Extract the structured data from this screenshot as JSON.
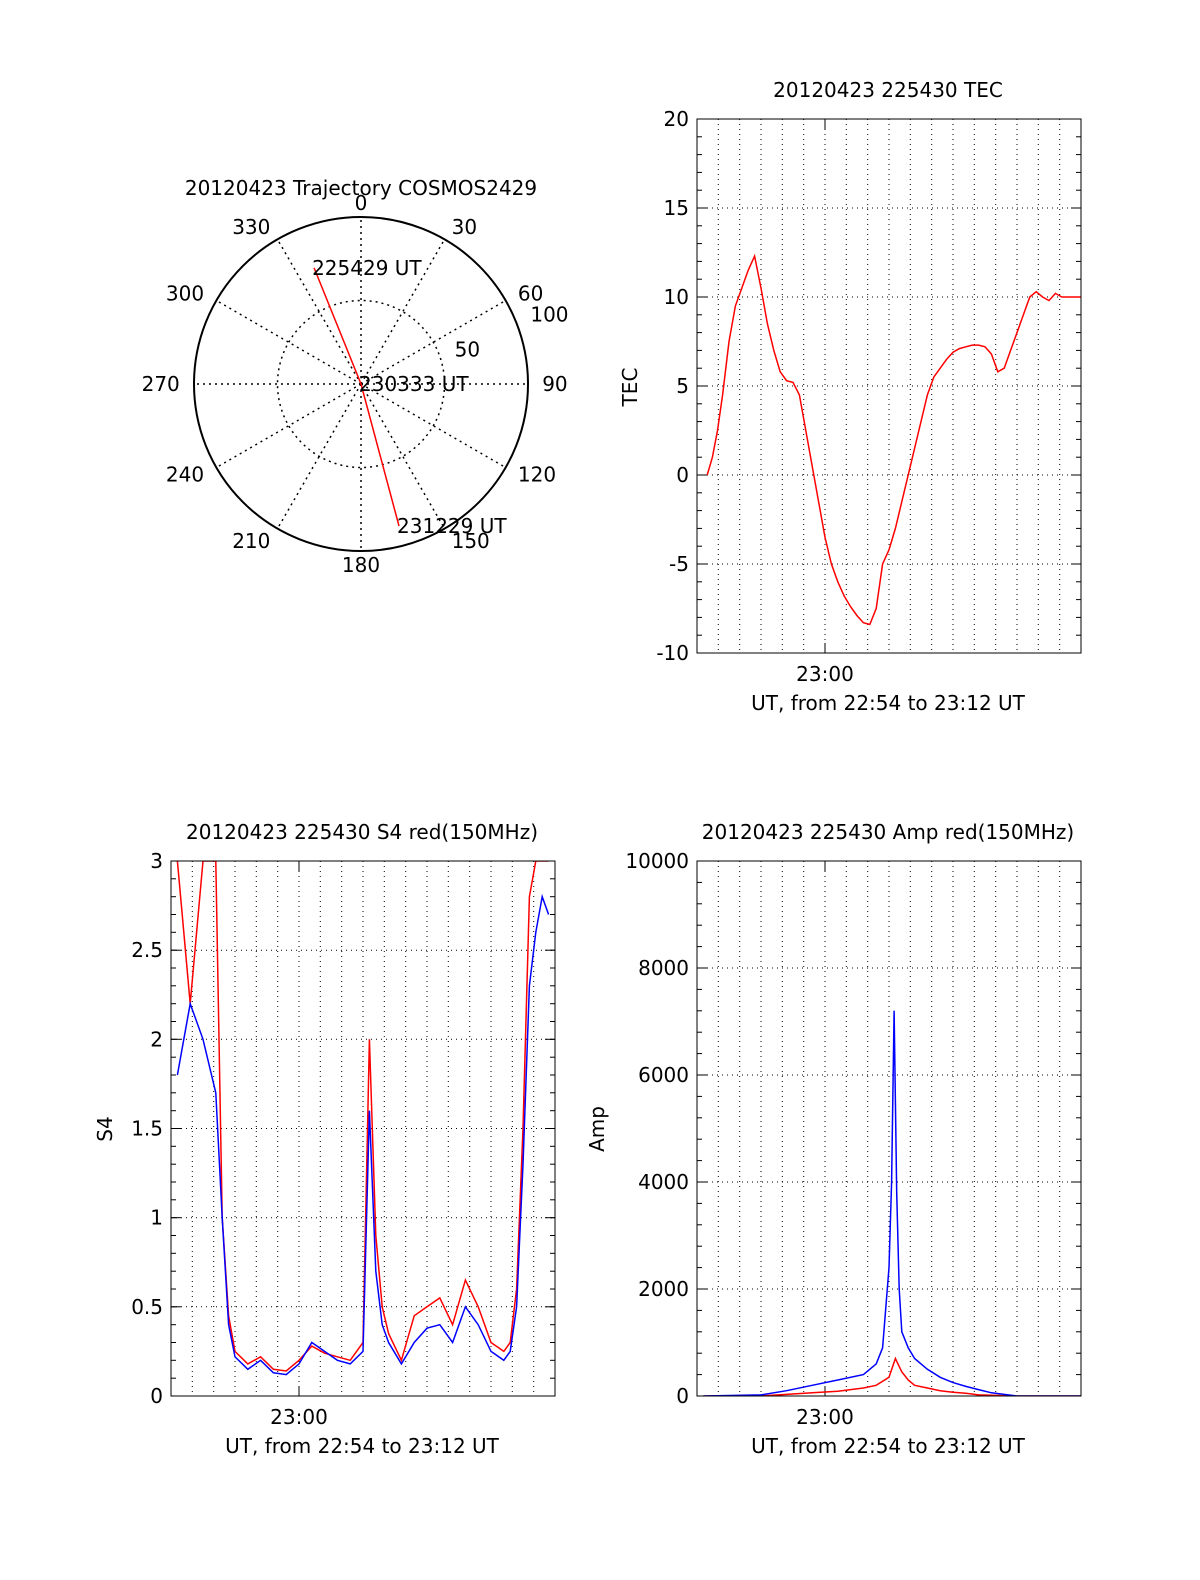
{
  "colors": {
    "red": "#ff0000",
    "blue": "#0000ff",
    "axis": "#000000",
    "grid": "#000000"
  },
  "chart_data": [
    {
      "id": "trajectory",
      "type": "polar",
      "title": "20120423 Trajectory COSMOS2429",
      "angle_labels": [
        "0",
        "30",
        "60",
        "90",
        "120",
        "150",
        "180",
        "210",
        "240",
        "270",
        "300",
        "330"
      ],
      "angle_values": [
        0,
        30,
        60,
        90,
        120,
        150,
        180,
        210,
        240,
        270,
        300,
        330
      ],
      "radius_labels": [
        {
          "label": "50",
          "value": 50
        },
        {
          "label": "100",
          "value": 100
        }
      ],
      "rmax": 100,
      "grid": true,
      "series": [
        {
          "color": "red",
          "points": [
            {
              "az": 338,
              "r": 75
            },
            {
              "az": 180,
              "r": 0
            },
            {
              "az": 165,
              "r": 88
            }
          ]
        }
      ],
      "annotations": [
        {
          "text": "225429 UT",
          "az": 338,
          "r": 75
        },
        {
          "text": "230333 UT",
          "az": 180,
          "r": 0
        },
        {
          "text": "231229 UT",
          "az": 165,
          "r": 88
        }
      ]
    },
    {
      "id": "tec",
      "type": "line",
      "title": "20120423 225430 TEC",
      "xlabel": "UT, from 22:54 to 23:12 UT",
      "ylabel": "TEC",
      "xlim": [
        22.9,
        23.2
      ],
      "ylim": [
        -10,
        20
      ],
      "yticks": [
        -10,
        -5,
        0,
        5,
        10,
        15,
        20
      ],
      "ytick_labels": [
        "-10",
        "-5",
        "0",
        "5",
        "10",
        "15",
        "20"
      ],
      "xticks": [
        23.0
      ],
      "xtick_labels": [
        "23:00"
      ],
      "grid": true,
      "series": [
        {
          "color": "red",
          "x": [
            22.908,
            22.912,
            22.916,
            22.92,
            22.925,
            22.93,
            22.935,
            22.94,
            22.945,
            22.95,
            22.955,
            22.96,
            22.965,
            22.97,
            22.975,
            22.98,
            22.985,
            22.99,
            22.995,
            23.0,
            23.005,
            23.01,
            23.015,
            23.02,
            23.025,
            23.03,
            23.035,
            23.04,
            23.045,
            23.05,
            23.055,
            23.06,
            23.065,
            23.07,
            23.075,
            23.08,
            23.085,
            23.09,
            23.095,
            23.1,
            23.105,
            23.11,
            23.115,
            23.12,
            23.125,
            23.13,
            23.135,
            23.14,
            23.145,
            23.15,
            23.155,
            23.16,
            23.165,
            23.17,
            23.175,
            23.18,
            23.185,
            23.19,
            23.195,
            23.2
          ],
          "y": [
            0.0,
            1.0,
            2.5,
            4.5,
            7.5,
            9.5,
            10.5,
            11.5,
            12.3,
            10.5,
            8.5,
            7.0,
            5.8,
            5.3,
            5.2,
            4.5,
            2.5,
            0.5,
            -1.5,
            -3.5,
            -5.0,
            -6.0,
            -6.8,
            -7.4,
            -7.9,
            -8.3,
            -8.4,
            -7.5,
            -5.0,
            -4.2,
            -3.0,
            -1.5,
            0.0,
            1.5,
            3.0,
            4.5,
            5.5,
            6.0,
            6.5,
            6.9,
            7.1,
            7.2,
            7.3,
            7.3,
            7.2,
            6.8,
            5.8,
            6.0,
            7.0,
            8.0,
            9.0,
            10.0,
            10.3,
            10.0,
            9.8,
            10.2,
            10.0,
            10.0,
            10.0,
            10.0
          ]
        }
      ]
    },
    {
      "id": "s4",
      "type": "line",
      "title": "20120423 225430 S4 red(150MHz)",
      "xlabel": "UT, from 22:54 to 23:12 UT",
      "ylabel": "S4",
      "xlim": [
        22.9,
        23.2
      ],
      "ylim": [
        0,
        3
      ],
      "yticks": [
        0,
        0.5,
        1,
        1.5,
        2,
        2.5,
        3
      ],
      "ytick_labels": [
        "0",
        "0.5",
        "1",
        "1.5",
        "2",
        "2.5",
        "3"
      ],
      "xticks": [
        23.0
      ],
      "xtick_labels": [
        "23:00"
      ],
      "grid": true,
      "series": [
        {
          "color": "red",
          "x": [
            22.905,
            22.915,
            22.925,
            22.935,
            22.94,
            22.945,
            22.95,
            22.96,
            22.97,
            22.98,
            22.99,
            23.0,
            23.01,
            23.02,
            23.03,
            23.04,
            23.05,
            23.055,
            23.06,
            23.065,
            23.07,
            23.08,
            23.09,
            23.1,
            23.11,
            23.12,
            23.13,
            23.14,
            23.15,
            23.16,
            23.165,
            23.17,
            23.175,
            23.18,
            23.185,
            23.19,
            23.195
          ],
          "y": [
            3.0,
            2.2,
            3.0,
            3.0,
            1.0,
            0.45,
            0.25,
            0.18,
            0.22,
            0.15,
            0.14,
            0.2,
            0.28,
            0.24,
            0.22,
            0.2,
            0.3,
            2.0,
            0.9,
            0.5,
            0.35,
            0.2,
            0.45,
            0.5,
            0.55,
            0.4,
            0.65,
            0.5,
            0.3,
            0.25,
            0.3,
            0.6,
            1.5,
            2.8,
            3.0,
            3.0,
            3.0
          ]
        },
        {
          "color": "blue",
          "x": [
            22.905,
            22.915,
            22.925,
            22.935,
            22.94,
            22.945,
            22.95,
            22.96,
            22.97,
            22.98,
            22.99,
            23.0,
            23.01,
            23.02,
            23.03,
            23.04,
            23.05,
            23.055,
            23.06,
            23.065,
            23.07,
            23.08,
            23.09,
            23.1,
            23.11,
            23.12,
            23.13,
            23.14,
            23.15,
            23.16,
            23.165,
            23.17,
            23.175,
            23.18,
            23.185,
            23.19,
            23.195
          ],
          "y": [
            1.8,
            2.2,
            2.0,
            1.7,
            1.0,
            0.4,
            0.22,
            0.15,
            0.2,
            0.13,
            0.12,
            0.18,
            0.3,
            0.25,
            0.2,
            0.18,
            0.25,
            1.6,
            0.7,
            0.4,
            0.3,
            0.18,
            0.3,
            0.38,
            0.4,
            0.3,
            0.5,
            0.4,
            0.25,
            0.2,
            0.25,
            0.5,
            1.3,
            2.3,
            2.6,
            2.8,
            2.7
          ]
        }
      ]
    },
    {
      "id": "amp",
      "type": "line",
      "title": "20120423 225430 Amp red(150MHz)",
      "xlabel": "UT, from 22:54 to 23:12 UT",
      "ylabel": "Amp",
      "xlim": [
        22.9,
        23.2
      ],
      "ylim": [
        0,
        10000
      ],
      "yticks": [
        0,
        2000,
        4000,
        6000,
        8000,
        10000
      ],
      "ytick_labels": [
        "0",
        "2000",
        "4000",
        "6000",
        "8000",
        "10000"
      ],
      "xticks": [
        23.0
      ],
      "xtick_labels": [
        "23:00"
      ],
      "grid": true,
      "series": [
        {
          "color": "red",
          "x": [
            22.905,
            22.95,
            22.97,
            22.99,
            23.01,
            23.03,
            23.04,
            23.05,
            23.055,
            23.06,
            23.065,
            23.07,
            23.08,
            23.09,
            23.1,
            23.11,
            23.12,
            23.15,
            23.2
          ],
          "y": [
            0,
            0,
            30,
            60,
            90,
            150,
            200,
            350,
            700,
            450,
            300,
            200,
            150,
            100,
            70,
            50,
            20,
            0,
            0
          ]
        },
        {
          "color": "blue",
          "x": [
            22.905,
            22.95,
            22.97,
            22.99,
            23.01,
            23.03,
            23.04,
            23.045,
            23.05,
            23.052,
            23.054,
            23.056,
            23.058,
            23.06,
            23.065,
            23.07,
            23.08,
            23.09,
            23.1,
            23.11,
            23.12,
            23.13,
            23.15,
            23.2
          ],
          "y": [
            0,
            20,
            100,
            200,
            300,
            400,
            600,
            900,
            2400,
            4000,
            7200,
            3800,
            2000,
            1200,
            900,
            700,
            500,
            350,
            250,
            180,
            120,
            60,
            0,
            0
          ]
        }
      ]
    }
  ]
}
